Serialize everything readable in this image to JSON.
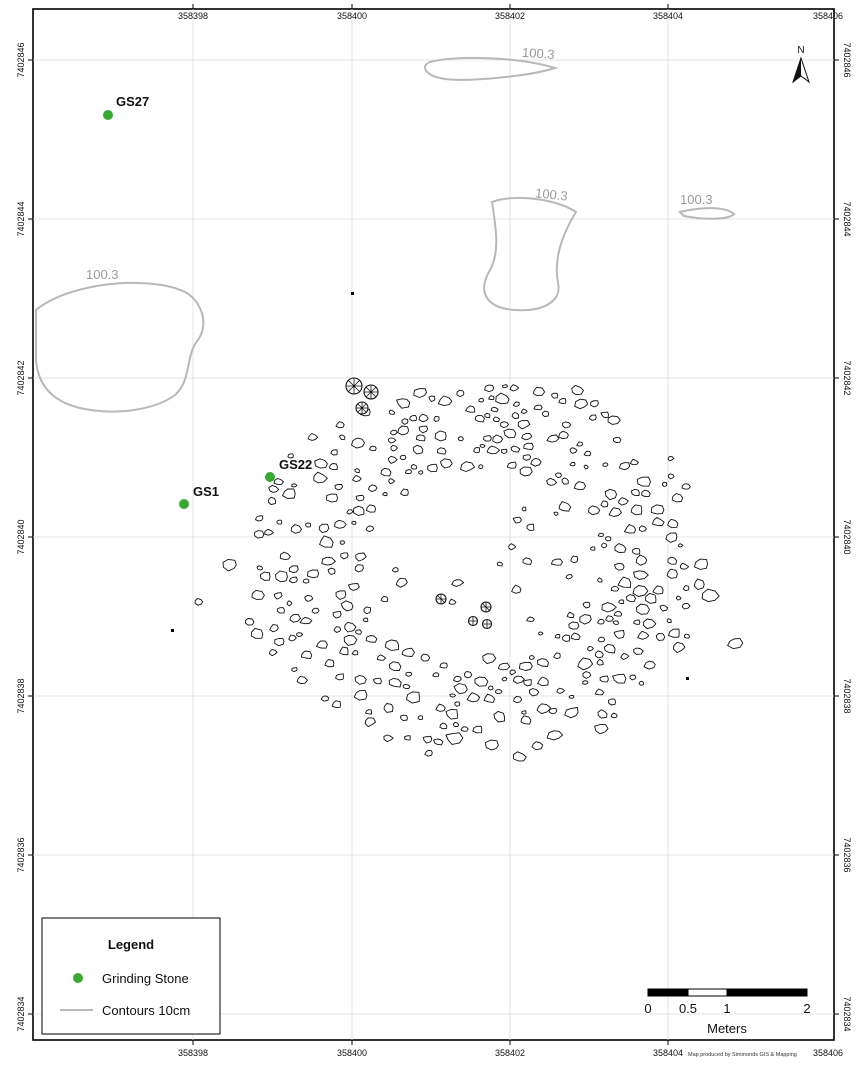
{
  "map": {
    "x_ticks": [
      "358398",
      "358400",
      "358402",
      "358404",
      "358406"
    ],
    "y_ticks": [
      "7402846",
      "7402844",
      "7402842",
      "7402840",
      "7402838",
      "7402836",
      "7402834"
    ],
    "north_label": "N",
    "credit": "Map produced by Simmonds GIS & Mapping",
    "contour_color": "#b8b8b8",
    "point_color": "#3aa832",
    "stone_outline_color": "#111111"
  },
  "contour_labels": [
    "100.3",
    "100.3",
    "100.3",
    "100.3"
  ],
  "grinding_stones": [
    {
      "id": "GS27",
      "label": "GS27"
    },
    {
      "id": "GS22",
      "label": "GS22"
    },
    {
      "id": "GS1",
      "label": "GS1"
    }
  ],
  "legend": {
    "title": "Legend",
    "items": [
      {
        "label": "Grinding Stone",
        "symbol": "green-dot"
      },
      {
        "label": "Contours 10cm",
        "symbol": "grey-line"
      }
    ]
  },
  "scalebar": {
    "labels": [
      "0",
      "0.5",
      "1",
      "2"
    ],
    "unit": "Meters"
  }
}
